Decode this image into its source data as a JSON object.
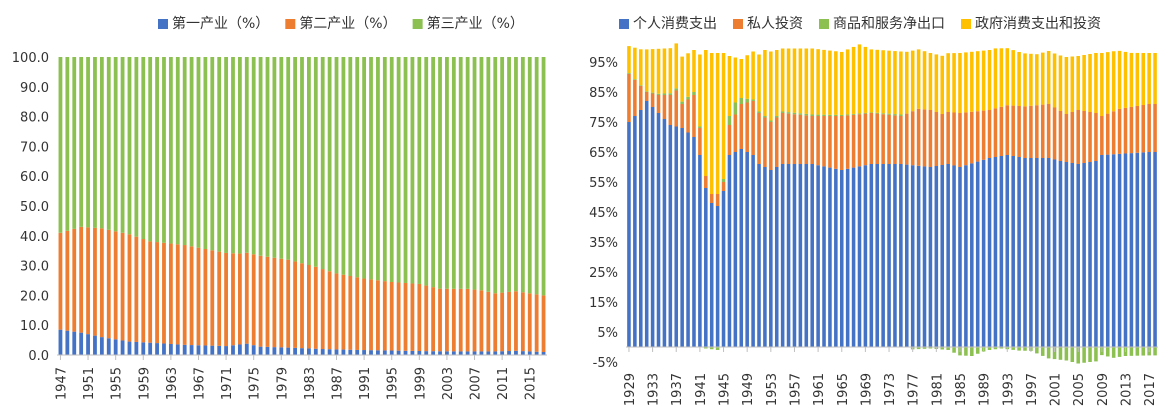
{
  "chart_data": [
    {
      "type": "bar",
      "stacked": true,
      "title": "",
      "xlabel": "",
      "ylabel": "",
      "ylim": [
        0,
        100
      ],
      "yticks": [
        "0.0",
        "10.0",
        "20.0",
        "30.0",
        "40.0",
        "50.0",
        "60.0",
        "70.0",
        "80.0",
        "90.0",
        "100.0"
      ],
      "x_start": 1947,
      "x_end": 2017,
      "xtick_labels": [
        "1947",
        "1951",
        "1955",
        "1959",
        "1963",
        "1967",
        "1971",
        "1975",
        "1979",
        "1983",
        "1987",
        "1991",
        "1995",
        "1999",
        "2003",
        "2007",
        "2011",
        "2015"
      ],
      "legend_position": "top",
      "series": [
        {
          "name": "第一产业（%）",
          "color": "#4472C4",
          "anchors": [
            [
              1947,
              8.5
            ],
            [
              1950,
              7.5
            ],
            [
              1953,
              6
            ],
            [
              1957,
              4.5
            ],
            [
              1961,
              4
            ],
            [
              1965,
              3.4
            ],
            [
              1971,
              3
            ],
            [
              1974,
              3.8
            ],
            [
              1976,
              2.8
            ],
            [
              1981,
              2.4
            ],
            [
              1985,
              2
            ],
            [
              1990,
              1.7
            ],
            [
              1995,
              1.5
            ],
            [
              2000,
              1.3
            ],
            [
              2005,
              1.2
            ],
            [
              2010,
              1.2
            ],
            [
              2013,
              1.4
            ],
            [
              2017,
              1
            ]
          ]
        },
        {
          "name": "第二产业（%）",
          "color": "#ED7D31",
          "anchors": [
            [
              1947,
              32.5
            ],
            [
              1950,
              35.5
            ],
            [
              1953,
              36.5
            ],
            [
              1957,
              36
            ],
            [
              1960,
              34
            ],
            [
              1965,
              33.5
            ],
            [
              1969,
              32
            ],
            [
              1973,
              30.5
            ],
            [
              1976,
              30.5
            ],
            [
              1980,
              29.5
            ],
            [
              1984,
              27.5
            ],
            [
              1987,
              25.5
            ],
            [
              1991,
              24
            ],
            [
              1995,
              23
            ],
            [
              1999,
              22.5
            ],
            [
              2002,
              21
            ],
            [
              2006,
              21
            ],
            [
              2008,
              20.5
            ],
            [
              2010,
              19.5
            ],
            [
              2013,
              20
            ],
            [
              2017,
              19
            ]
          ]
        },
        {
          "name": "第三产业（%）",
          "color": "#8CC152",
          "fill_to": 100
        }
      ]
    },
    {
      "type": "bar",
      "stacked": true,
      "title": "",
      "xlabel": "",
      "ylabel": "",
      "ylim": [
        -5,
        100
      ],
      "yticks": [
        "-5%",
        "5%",
        "15%",
        "25%",
        "35%",
        "45%",
        "55%",
        "65%",
        "75%",
        "85%",
        "95%"
      ],
      "x_start": 1929,
      "x_end": 2018,
      "xtick_labels": [
        "1929",
        "1933",
        "1937",
        "1941",
        "1945",
        "1949",
        "1953",
        "1957",
        "1961",
        "1965",
        "1969",
        "1973",
        "1977",
        "1981",
        "1985",
        "1989",
        "1993",
        "1997",
        "2001",
        "2005",
        "2009",
        "2013",
        "2017"
      ],
      "legend_position": "top",
      "series": [
        {
          "name": "个人消费支出",
          "color": "#4472C4",
          "anchors": [
            [
              1929,
              75
            ],
            [
              1931,
              79
            ],
            [
              1932,
              82
            ],
            [
              1934,
              78
            ],
            [
              1936,
              74
            ],
            [
              1938,
              73
            ],
            [
              1940,
              70
            ],
            [
              1941,
              64
            ],
            [
              1942,
              53
            ],
            [
              1943,
              48
            ],
            [
              1944,
              47
            ],
            [
              1945,
              52
            ],
            [
              1946,
              64
            ],
            [
              1948,
              66
            ],
            [
              1950,
              64
            ],
            [
              1951,
              61
            ],
            [
              1953,
              59
            ],
            [
              1955,
              61
            ],
            [
              1960,
              61
            ],
            [
              1965,
              59
            ],
            [
              1970,
              61
            ],
            [
              1975,
              61
            ],
            [
              1980,
              60
            ],
            [
              1983,
              61
            ],
            [
              1985,
              60
            ],
            [
              1990,
              63
            ],
            [
              1993,
              64
            ],
            [
              1996,
              63
            ],
            [
              2000,
              63
            ],
            [
              2002,
              62
            ],
            [
              2005,
              61
            ],
            [
              2008,
              62
            ],
            [
              2009,
              64
            ],
            [
              2017,
              65
            ]
          ]
        },
        {
          "name": "私人投资",
          "color": "#ED7D31",
          "anchors": [
            [
              1929,
              16
            ],
            [
              1931,
              8
            ],
            [
              1932,
              3
            ],
            [
              1934,
              6
            ],
            [
              1936,
              10
            ],
            [
              1937,
              12
            ],
            [
              1938,
              8
            ],
            [
              1940,
              14
            ],
            [
              1941,
              9
            ],
            [
              1942,
              4
            ],
            [
              1943,
              3
            ],
            [
              1944,
              4
            ],
            [
              1945,
              3
            ],
            [
              1946,
              10
            ],
            [
              1948,
              15
            ],
            [
              1950,
              18
            ],
            [
              1951,
              17
            ],
            [
              1953,
              16
            ],
            [
              1955,
              17
            ],
            [
              1960,
              16
            ],
            [
              1965,
              18
            ],
            [
              1970,
              17
            ],
            [
              1975,
              16
            ],
            [
              1978,
              19
            ],
            [
              1980,
              19
            ],
            [
              1982,
              17
            ],
            [
              1985,
              18
            ],
            [
              1990,
              16
            ],
            [
              1995,
              17
            ],
            [
              2000,
              18
            ],
            [
              2003,
              16
            ],
            [
              2005,
              18
            ],
            [
              2008,
              16
            ],
            [
              2009,
              13
            ],
            [
              2012,
              15
            ],
            [
              2017,
              16
            ]
          ]
        },
        {
          "name": "商品和服务净出口",
          "color": "#8CC152",
          "anchors": [
            [
              1929,
              0.3
            ],
            [
              1932,
              0.2
            ],
            [
              1940,
              1
            ],
            [
              1941,
              0.5
            ],
            [
              1942,
              -0.5
            ],
            [
              1944,
              -1
            ],
            [
              1946,
              3
            ],
            [
              1947,
              4
            ],
            [
              1948,
              2
            ],
            [
              1950,
              0.5
            ],
            [
              1960,
              0.5
            ],
            [
              1970,
              0.2
            ],
            [
              1975,
              0.5
            ],
            [
              1977,
              -0.8
            ],
            [
              1980,
              -0.5
            ],
            [
              1983,
              -1
            ],
            [
              1985,
              -2.8
            ],
            [
              1987,
              -3
            ],
            [
              1989,
              -1.5
            ],
            [
              1990,
              -1
            ],
            [
              1992,
              -0.5
            ],
            [
              1995,
              -1.2
            ],
            [
              1997,
              -1.3
            ],
            [
              2000,
              -3.8
            ],
            [
              2003,
              -4.5
            ],
            [
              2005,
              -5.5
            ],
            [
              2007,
              -5
            ],
            [
              2008,
              -4.8
            ],
            [
              2009,
              -2.7
            ],
            [
              2011,
              -3.6
            ],
            [
              2013,
              -3
            ],
            [
              2017,
              -2.8
            ]
          ]
        },
        {
          "name": "政府消费支出和投资",
          "color": "#FFC000",
          "anchors": [
            [
              1929,
              9
            ],
            [
              1931,
              12
            ],
            [
              1932,
              14
            ],
            [
              1934,
              15
            ],
            [
              1936,
              15
            ],
            [
              1938,
              15
            ],
            [
              1940,
              14
            ],
            [
              1941,
              24
            ],
            [
              1942,
              42
            ],
            [
              1943,
              47
            ],
            [
              1944,
              47
            ],
            [
              1945,
              42
            ],
            [
              1946,
              20
            ],
            [
              1947,
              15
            ],
            [
              1948,
              13
            ],
            [
              1950,
              16
            ],
            [
              1952,
              22
            ],
            [
              1953,
              23
            ],
            [
              1955,
              21
            ],
            [
              1960,
              22
            ],
            [
              1965,
              21
            ],
            [
              1968,
              23
            ],
            [
              1970,
              21
            ],
            [
              1975,
              21
            ],
            [
              1980,
              19
            ],
            [
              1985,
              20
            ],
            [
              1988,
              20
            ],
            [
              1991,
              20
            ],
            [
              1995,
              18
            ],
            [
              1998,
              17
            ],
            [
              2001,
              18
            ],
            [
              2003,
              19
            ],
            [
              2005,
              18
            ],
            [
              2008,
              20
            ],
            [
              2009,
              21
            ],
            [
              2011,
              20
            ],
            [
              2014,
              18
            ],
            [
              2017,
              17
            ]
          ]
        }
      ]
    }
  ]
}
